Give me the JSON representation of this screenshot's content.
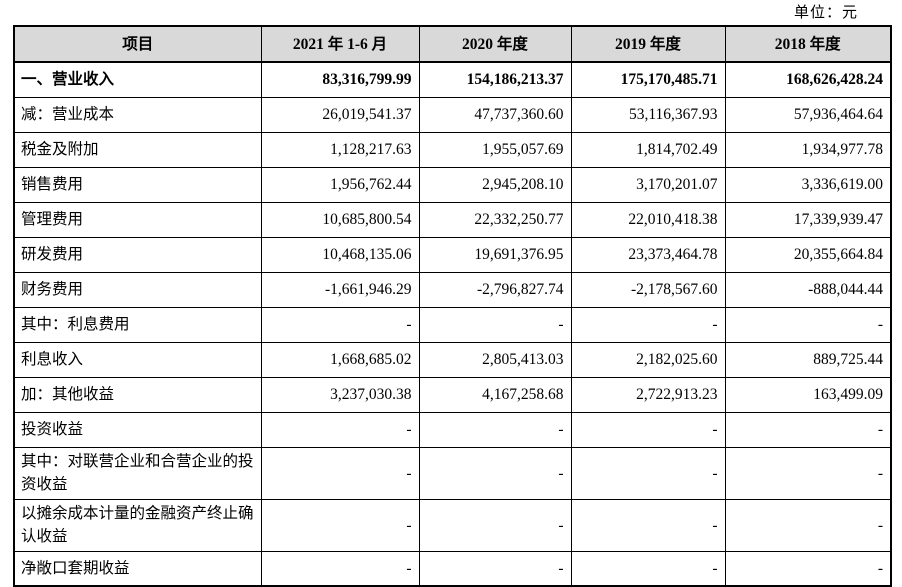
{
  "unit_label": "单位：元",
  "table": {
    "headers": [
      "项目",
      "2021 年 1-6 月",
      "2020 年度",
      "2019 年度",
      "2018 年度"
    ],
    "rows": [
      {
        "label": "一、营业收入",
        "bold": true,
        "values": [
          "83,316,799.99",
          "154,186,213.37",
          "175,170,485.71",
          "168,626,428.24"
        ]
      },
      {
        "label": "减：营业成本",
        "values": [
          "26,019,541.37",
          "47,737,360.60",
          "53,116,367.93",
          "57,936,464.64"
        ]
      },
      {
        "label": "税金及附加",
        "values": [
          "1,128,217.63",
          "1,955,057.69",
          "1,814,702.49",
          "1,934,977.78"
        ]
      },
      {
        "label": "销售费用",
        "values": [
          "1,956,762.44",
          "2,945,208.10",
          "3,170,201.07",
          "3,336,619.00"
        ]
      },
      {
        "label": "管理费用",
        "values": [
          "10,685,800.54",
          "22,332,250.77",
          "22,010,418.38",
          "17,339,939.47"
        ]
      },
      {
        "label": "研发费用",
        "values": [
          "10,468,135.06",
          "19,691,376.95",
          "23,373,464.78",
          "20,355,664.84"
        ]
      },
      {
        "label": "财务费用",
        "values": [
          "-1,661,946.29",
          "-2,796,827.74",
          "-2,178,567.60",
          "-888,044.44"
        ]
      },
      {
        "label": "其中：利息费用",
        "values": [
          "-",
          "-",
          "-",
          "-"
        ]
      },
      {
        "label": "利息收入",
        "values": [
          "1,668,685.02",
          "2,805,413.03",
          "2,182,025.60",
          "889,725.44"
        ]
      },
      {
        "label": "加：其他收益",
        "values": [
          "3,237,030.38",
          "4,167,258.68",
          "2,722,913.23",
          "163,499.09"
        ]
      },
      {
        "label": "投资收益",
        "values": [
          "-",
          "-",
          "-",
          "-"
        ]
      },
      {
        "label": "其中：对联营企业和合营企业的投资收益",
        "tall": true,
        "values": [
          "-",
          "-",
          "-",
          "-"
        ]
      },
      {
        "label": "以摊余成本计量的金融资产终止确认收益",
        "tall": true,
        "values": [
          "-",
          "-",
          "-",
          "-"
        ]
      },
      {
        "label": "净敞口套期收益",
        "values": [
          "-",
          "-",
          "-",
          "-"
        ]
      }
    ]
  }
}
